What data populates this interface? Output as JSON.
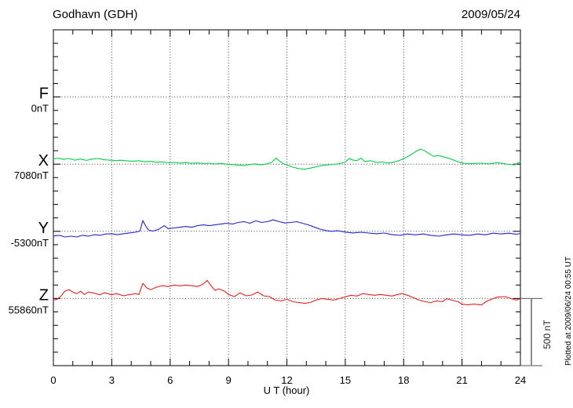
{
  "header": {
    "title": "Godhavn (GDH)",
    "date": "2009/05/24"
  },
  "x_axis": {
    "label": "U T (hour)",
    "ticks": [
      0,
      3,
      6,
      9,
      12,
      15,
      18,
      21,
      24
    ],
    "minor_step_hours": 1,
    "range": [
      0,
      24
    ]
  },
  "scale_bar": {
    "label": "500 nT",
    "value_nT": 500
  },
  "footer_note": "Plotted at 2009/06/24 00:55 UT",
  "chart_data": {
    "type": "line",
    "title": "Godhavn (GDH)",
    "subtitle": "2009/05/24",
    "xlabel": "U T (hour)",
    "x_range_hours": [
      0,
      24
    ],
    "x_gridlines_every_hours": 3,
    "y_tick_nT": 100,
    "row_spacing_nT": 500,
    "legend_position": "left",
    "grid": "dotted",
    "series": [
      {
        "name": "F",
        "baseline": "0nT",
        "color": "#FFB300",
        "points": []
      },
      {
        "name": "X",
        "baseline": "7080nT",
        "color": "#00CC44",
        "points": [
          [
            0,
            40
          ],
          [
            0.3,
            45
          ],
          [
            0.5,
            35
          ],
          [
            0.8,
            42
          ],
          [
            1.1,
            30
          ],
          [
            1.4,
            38
          ],
          [
            1.7,
            28
          ],
          [
            2.0,
            38
          ],
          [
            2.3,
            42
          ],
          [
            2.6,
            33
          ],
          [
            2.9,
            30
          ],
          [
            3.2,
            26
          ],
          [
            3.5,
            29
          ],
          [
            3.8,
            24
          ],
          [
            4.1,
            22
          ],
          [
            4.4,
            25
          ],
          [
            4.7,
            18
          ],
          [
            5.0,
            21
          ],
          [
            5.3,
            14
          ],
          [
            5.6,
            17
          ],
          [
            5.9,
            10
          ],
          [
            6.2,
            13
          ],
          [
            6.5,
            8
          ],
          [
            6.8,
            11
          ],
          [
            7.1,
            6
          ],
          [
            7.4,
            9
          ],
          [
            7.7,
            4
          ],
          [
            8.0,
            7
          ],
          [
            8.3,
            1
          ],
          [
            8.6,
            5
          ],
          [
            8.9,
            0
          ],
          [
            9.2,
            -3
          ],
          [
            9.5,
            -7
          ],
          [
            9.8,
            -10
          ],
          [
            10.1,
            -3
          ],
          [
            10.4,
            2
          ],
          [
            10.7,
            -5
          ],
          [
            11.0,
            3
          ],
          [
            11.2,
            12
          ],
          [
            11.45,
            45
          ],
          [
            11.6,
            25
          ],
          [
            11.8,
            5
          ],
          [
            12.0,
            -5
          ],
          [
            12.3,
            -22
          ],
          [
            12.6,
            -33
          ],
          [
            12.9,
            -38
          ],
          [
            13.2,
            -30
          ],
          [
            13.5,
            -20
          ],
          [
            13.8,
            -10
          ],
          [
            14.1,
            -5
          ],
          [
            14.4,
            -2
          ],
          [
            14.7,
            4
          ],
          [
            15.0,
            15
          ],
          [
            15.2,
            42
          ],
          [
            15.4,
            30
          ],
          [
            15.6,
            26
          ],
          [
            15.8,
            45
          ],
          [
            16.0,
            20
          ],
          [
            16.3,
            25
          ],
          [
            16.6,
            12
          ],
          [
            16.9,
            16
          ],
          [
            17.2,
            8
          ],
          [
            17.5,
            15
          ],
          [
            17.8,
            28
          ],
          [
            18.1,
            48
          ],
          [
            18.4,
            72
          ],
          [
            18.6,
            92
          ],
          [
            18.85,
            112
          ],
          [
            19.1,
            98
          ],
          [
            19.3,
            78
          ],
          [
            19.55,
            58
          ],
          [
            19.8,
            64
          ],
          [
            20.1,
            52
          ],
          [
            20.4,
            40
          ],
          [
            20.7,
            22
          ],
          [
            21.0,
            8
          ],
          [
            21.3,
            3
          ],
          [
            21.6,
            5
          ],
          [
            22.0,
            7
          ],
          [
            22.4,
            2
          ],
          [
            22.8,
            11
          ],
          [
            23.1,
            5
          ],
          [
            23.4,
            -2
          ],
          [
            23.7,
            -5
          ],
          [
            24.0,
            18
          ]
        ]
      },
      {
        "name": "Y",
        "baseline": "-5300nT",
        "color": "#2222CC",
        "points": [
          [
            0,
            -35
          ],
          [
            0.3,
            -30
          ],
          [
            0.6,
            -42
          ],
          [
            0.9,
            -36
          ],
          [
            1.2,
            -42
          ],
          [
            1.5,
            -30
          ],
          [
            1.8,
            -36
          ],
          [
            2.1,
            -25
          ],
          [
            2.4,
            -30
          ],
          [
            2.7,
            -20
          ],
          [
            3.0,
            -18
          ],
          [
            3.3,
            -25
          ],
          [
            3.6,
            -18
          ],
          [
            3.9,
            -12
          ],
          [
            4.2,
            -7
          ],
          [
            4.45,
            2
          ],
          [
            4.6,
            80
          ],
          [
            4.75,
            38
          ],
          [
            4.9,
            8
          ],
          [
            5.1,
            2
          ],
          [
            5.4,
            14
          ],
          [
            5.7,
            42
          ],
          [
            5.9,
            20
          ],
          [
            6.2,
            25
          ],
          [
            6.5,
            30
          ],
          [
            6.8,
            36
          ],
          [
            7.1,
            30
          ],
          [
            7.4,
            42
          ],
          [
            7.7,
            48
          ],
          [
            8.0,
            42
          ],
          [
            8.3,
            48
          ],
          [
            8.6,
            54
          ],
          [
            8.9,
            60
          ],
          [
            9.2,
            54
          ],
          [
            9.5,
            66
          ],
          [
            9.8,
            72
          ],
          [
            10.1,
            60
          ],
          [
            10.4,
            78
          ],
          [
            10.7,
            66
          ],
          [
            11.0,
            72
          ],
          [
            11.3,
            85
          ],
          [
            11.6,
            72
          ],
          [
            11.9,
            62
          ],
          [
            12.2,
            66
          ],
          [
            12.5,
            72
          ],
          [
            12.8,
            60
          ],
          [
            13.1,
            48
          ],
          [
            13.4,
            32
          ],
          [
            13.7,
            16
          ],
          [
            14.0,
            6
          ],
          [
            14.3,
            0
          ],
          [
            14.6,
            5
          ],
          [
            15.0,
            -6
          ],
          [
            15.4,
            -12
          ],
          [
            15.8,
            -7
          ],
          [
            16.2,
            -13
          ],
          [
            16.6,
            -18
          ],
          [
            17.0,
            -13
          ],
          [
            17.4,
            -25
          ],
          [
            17.8,
            -30
          ],
          [
            18.2,
            -20
          ],
          [
            18.6,
            -26
          ],
          [
            19.0,
            -20
          ],
          [
            19.4,
            -30
          ],
          [
            19.8,
            -36
          ],
          [
            20.2,
            -26
          ],
          [
            20.6,
            -20
          ],
          [
            21.0,
            -26
          ],
          [
            21.4,
            -30
          ],
          [
            21.8,
            -20
          ],
          [
            22.2,
            -26
          ],
          [
            22.6,
            -14
          ],
          [
            23.0,
            -20
          ],
          [
            23.4,
            -14
          ],
          [
            23.8,
            -22
          ],
          [
            24.0,
            -16
          ]
        ]
      },
      {
        "name": "Z",
        "baseline": "55860nT",
        "color": "#E62020",
        "points": [
          [
            0,
            -12
          ],
          [
            0.2,
            -5
          ],
          [
            0.4,
            20
          ],
          [
            0.6,
            55
          ],
          [
            0.8,
            66
          ],
          [
            1.0,
            48
          ],
          [
            1.2,
            36
          ],
          [
            1.4,
            54
          ],
          [
            1.6,
            30
          ],
          [
            1.8,
            48
          ],
          [
            2.0,
            42
          ],
          [
            2.2,
            36
          ],
          [
            2.4,
            26
          ],
          [
            2.6,
            42
          ],
          [
            2.8,
            36
          ],
          [
            3.0,
            26
          ],
          [
            3.2,
            36
          ],
          [
            3.4,
            30
          ],
          [
            3.6,
            20
          ],
          [
            3.8,
            26
          ],
          [
            4.0,
            30
          ],
          [
            4.2,
            36
          ],
          [
            4.4,
            30
          ],
          [
            4.6,
            112
          ],
          [
            4.8,
            78
          ],
          [
            5.0,
            66
          ],
          [
            5.3,
            84
          ],
          [
            5.6,
            95
          ],
          [
            5.9,
            89
          ],
          [
            6.2,
            100
          ],
          [
            6.5,
            94
          ],
          [
            6.8,
            100
          ],
          [
            7.1,
            95
          ],
          [
            7.4,
            89
          ],
          [
            7.7,
            107
          ],
          [
            7.9,
            135
          ],
          [
            8.1,
            95
          ],
          [
            8.3,
            60
          ],
          [
            8.5,
            72
          ],
          [
            8.8,
            54
          ],
          [
            9.0,
            30
          ],
          [
            9.3,
            14
          ],
          [
            9.6,
            42
          ],
          [
            9.9,
            20
          ],
          [
            10.2,
            26
          ],
          [
            10.5,
            48
          ],
          [
            10.8,
            20
          ],
          [
            11.1,
            14
          ],
          [
            11.4,
            -12
          ],
          [
            11.7,
            -18
          ],
          [
            12.0,
            -6
          ],
          [
            12.3,
            -24
          ],
          [
            12.6,
            -30
          ],
          [
            12.9,
            -36
          ],
          [
            13.2,
            -30
          ],
          [
            13.5,
            -12
          ],
          [
            13.8,
            0
          ],
          [
            14.1,
            -6
          ],
          [
            14.4,
            -12
          ],
          [
            14.7,
            0
          ],
          [
            15.0,
            12
          ],
          [
            15.3,
            24
          ],
          [
            15.6,
            18
          ],
          [
            15.9,
            36
          ],
          [
            16.2,
            30
          ],
          [
            16.5,
            24
          ],
          [
            16.8,
            30
          ],
          [
            17.1,
            24
          ],
          [
            17.4,
            18
          ],
          [
            17.7,
            30
          ],
          [
            17.9,
            36
          ],
          [
            18.2,
            24
          ],
          [
            18.5,
            6
          ],
          [
            18.8,
            -12
          ],
          [
            19.1,
            -24
          ],
          [
            19.4,
            -30
          ],
          [
            19.7,
            -18
          ],
          [
            20.0,
            -24
          ],
          [
            20.2,
            -2
          ],
          [
            20.5,
            -12
          ],
          [
            20.8,
            -24
          ],
          [
            21.0,
            -42
          ],
          [
            21.3,
            -48
          ],
          [
            21.6,
            -42
          ],
          [
            22.0,
            -48
          ],
          [
            22.3,
            -18
          ],
          [
            22.8,
            10
          ],
          [
            23.2,
            14
          ],
          [
            23.5,
            0
          ],
          [
            23.8,
            -12
          ],
          [
            24.0,
            0
          ]
        ]
      }
    ]
  }
}
